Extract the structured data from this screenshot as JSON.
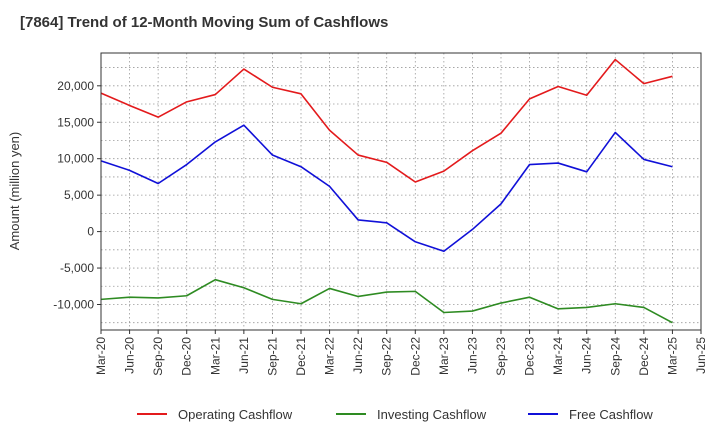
{
  "chart_data": {
    "type": "line",
    "title": "[7864]  Trend of 12-Month Moving Sum of Cashflows",
    "xlabel": "",
    "ylabel": "Amount (million yen)",
    "ylim": [
      -13500,
      24500
    ],
    "yticks": [
      -10000,
      -5000,
      0,
      5000,
      10000,
      15000,
      20000
    ],
    "ytick_labels": [
      "-10,000",
      "-5,000",
      "0",
      "5,000",
      "10,000",
      "15,000",
      "20,000"
    ],
    "x_tick_labels": [
      "Mar-20",
      "Jun-20",
      "Sep-20",
      "Dec-20",
      "Mar-21",
      "Jun-21",
      "Sep-21",
      "Dec-21",
      "Mar-22",
      "Jun-22",
      "Sep-22",
      "Dec-22",
      "Mar-23",
      "Jun-23",
      "Sep-23",
      "Dec-23",
      "Mar-24",
      "Jun-24",
      "Sep-24",
      "Dec-24",
      "Mar-25",
      "Jun-25"
    ],
    "grid": true,
    "legend_position": "bottom",
    "series": [
      {
        "name": "Operating Cashflow",
        "color": "#e31a1c",
        "values": [
          19000,
          17300,
          15700,
          17800,
          18800,
          22300,
          19800,
          18900,
          13900,
          10500,
          9500,
          6800,
          8300,
          11100,
          13500,
          18200,
          19900,
          18700,
          23600,
          20300,
          21300
        ]
      },
      {
        "name": "Investing Cashflow",
        "color": "#2e8b22",
        "values": [
          -9300,
          -9000,
          -9100,
          -8800,
          -6600,
          -7700,
          -9300,
          -9900,
          -7800,
          -8900,
          -8300,
          -8200,
          -11100,
          -10900,
          -9800,
          -9000,
          -10600,
          -10400,
          -9900,
          -10400,
          -12500
        ]
      },
      {
        "name": "Free Cashflow",
        "color": "#1010d8",
        "values": [
          9700,
          8400,
          6600,
          9200,
          12300,
          14600,
          10500,
          8900,
          6200,
          1600,
          1200,
          -1400,
          -2700,
          300,
          3800,
          9200,
          9400,
          8200,
          13600,
          9900,
          8900
        ]
      }
    ]
  }
}
